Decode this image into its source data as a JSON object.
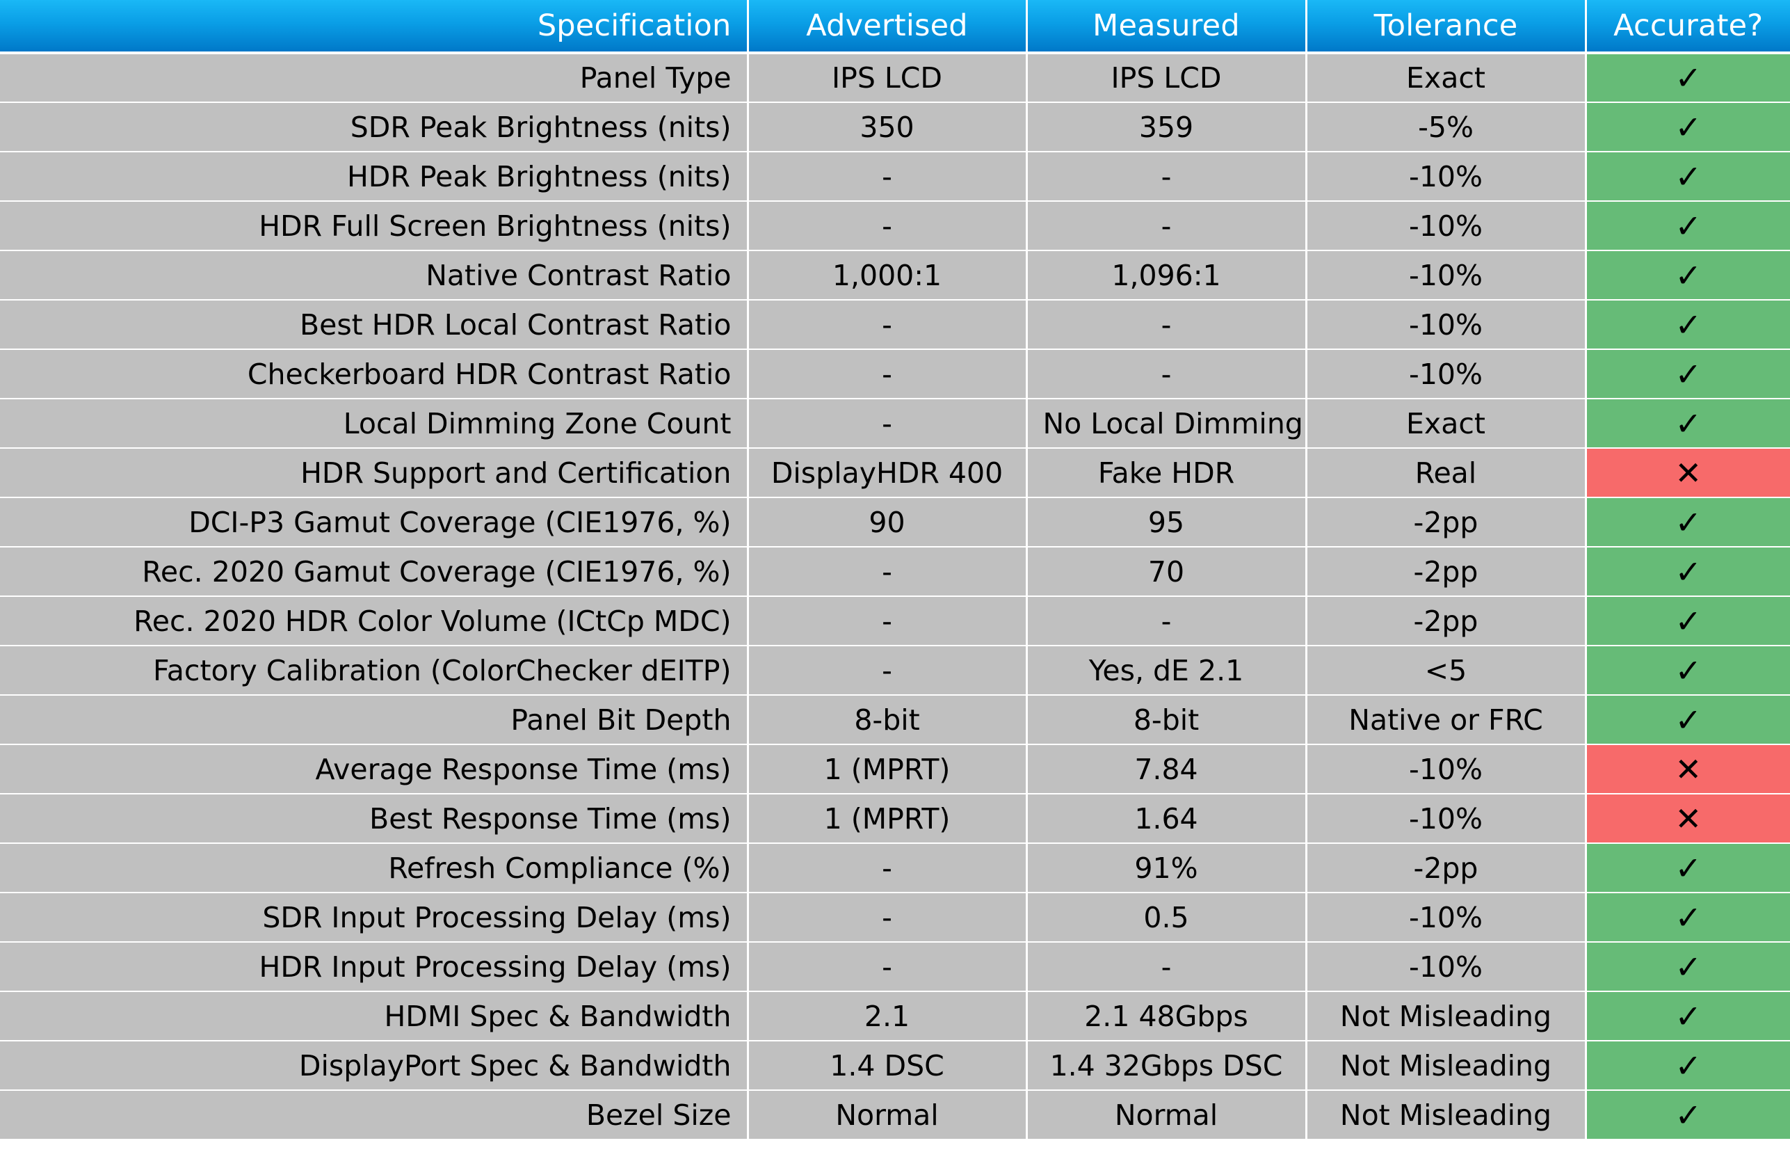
{
  "table": {
    "headers": {
      "spec": "Specification",
      "advertised": "Advertised",
      "measured": "Measured",
      "tolerance": "Tolerance",
      "accurate": "Accurate?"
    },
    "rows": [
      {
        "spec": "Panel Type",
        "advertised": "IPS LCD",
        "measured": "IPS LCD",
        "tolerance": "Exact",
        "accurate": "✓",
        "accurate_status": "pass"
      },
      {
        "spec": "SDR Peak Brightness (nits)",
        "advertised": "350",
        "measured": "359",
        "tolerance": "-5%",
        "accurate": "✓",
        "accurate_status": "pass"
      },
      {
        "spec": "HDR Peak Brightness (nits)",
        "advertised": "-",
        "measured": "-",
        "tolerance": "-10%",
        "accurate": "✓",
        "accurate_status": "pass"
      },
      {
        "spec": "HDR Full Screen Brightness (nits)",
        "advertised": "-",
        "measured": "-",
        "tolerance": "-10%",
        "accurate": "✓",
        "accurate_status": "pass"
      },
      {
        "spec": "Native Contrast Ratio",
        "advertised": "1,000:1",
        "measured": "1,096:1",
        "tolerance": "-10%",
        "accurate": "✓",
        "accurate_status": "pass"
      },
      {
        "spec": "Best HDR Local Contrast Ratio",
        "advertised": "-",
        "measured": "-",
        "tolerance": "-10%",
        "accurate": "✓",
        "accurate_status": "pass"
      },
      {
        "spec": "Checkerboard HDR Contrast Ratio",
        "advertised": "-",
        "measured": "-",
        "tolerance": "-10%",
        "accurate": "✓",
        "accurate_status": "pass"
      },
      {
        "spec": "Local Dimming Zone Count",
        "advertised": "-",
        "measured": "No Local Dimming",
        "tolerance": "Exact",
        "accurate": "✓",
        "accurate_status": "pass"
      },
      {
        "spec": "HDR Support and Certification",
        "advertised": "DisplayHDR 400",
        "measured": "Fake HDR",
        "tolerance": "Real",
        "accurate": "✕",
        "accurate_status": "fail"
      },
      {
        "spec": "DCI-P3 Gamut Coverage (CIE1976, %)",
        "advertised": "90",
        "measured": "95",
        "tolerance": "-2pp",
        "accurate": "✓",
        "accurate_status": "pass"
      },
      {
        "spec": "Rec. 2020 Gamut Coverage (CIE1976, %)",
        "advertised": "-",
        "measured": "70",
        "tolerance": "-2pp",
        "accurate": "✓",
        "accurate_status": "pass"
      },
      {
        "spec": "Rec. 2020 HDR Color Volume (ICtCp MDC)",
        "advertised": "-",
        "measured": "-",
        "tolerance": "-2pp",
        "accurate": "✓",
        "accurate_status": "pass"
      },
      {
        "spec": "Factory Calibration (ColorChecker dEITP)",
        "advertised": "-",
        "measured": "Yes, dE 2.1",
        "tolerance": "<5",
        "accurate": "✓",
        "accurate_status": "pass"
      },
      {
        "spec": "Panel Bit Depth",
        "advertised": "8-bit",
        "measured": "8-bit",
        "tolerance": "Native or FRC",
        "accurate": "✓",
        "accurate_status": "pass"
      },
      {
        "spec": "Average Response Time (ms)",
        "advertised": "1 (MPRT)",
        "measured": "7.84",
        "tolerance": "-10%",
        "accurate": "✕",
        "accurate_status": "fail"
      },
      {
        "spec": "Best Response Time (ms)",
        "advertised": "1 (MPRT)",
        "measured": "1.64",
        "tolerance": "-10%",
        "accurate": "✕",
        "accurate_status": "fail"
      },
      {
        "spec": "Refresh Compliance (%)",
        "advertised": "-",
        "measured": "91%",
        "tolerance": "-2pp",
        "accurate": "✓",
        "accurate_status": "pass"
      },
      {
        "spec": "SDR Input Processing Delay (ms)",
        "advertised": "-",
        "measured": "0.5",
        "tolerance": "-10%",
        "accurate": "✓",
        "accurate_status": "pass"
      },
      {
        "spec": "HDR Input Processing Delay (ms)",
        "advertised": "-",
        "measured": "-",
        "tolerance": "-10%",
        "accurate": "✓",
        "accurate_status": "pass"
      },
      {
        "spec": "HDMI Spec & Bandwidth",
        "advertised": "2.1",
        "measured": "2.1 48Gbps",
        "tolerance": "Not Misleading",
        "accurate": "✓",
        "accurate_status": "pass"
      },
      {
        "spec": "DisplayPort Spec & Bandwidth",
        "advertised": "1.4 DSC",
        "measured": "1.4 32Gbps DSC",
        "tolerance": "Not Misleading",
        "accurate": "✓",
        "accurate_status": "pass"
      },
      {
        "spec": "Bezel Size",
        "advertised": "Normal",
        "measured": "Normal",
        "tolerance": "Not Misleading",
        "accurate": "✓",
        "accurate_status": "pass"
      }
    ]
  },
  "colors": {
    "header_top": "#1ab8f6",
    "header_bottom": "#0078c8",
    "row_background": "#c0c0c0",
    "pass": "#66bb77",
    "fail": "#f76a6a"
  }
}
